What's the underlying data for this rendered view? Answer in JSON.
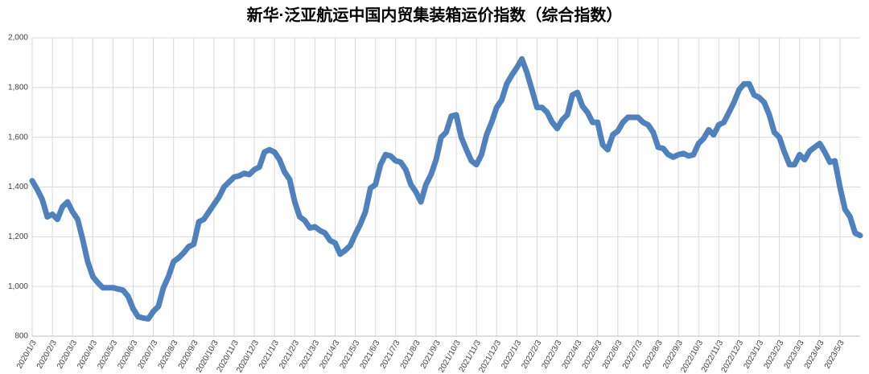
{
  "chart_data": {
    "type": "line",
    "title": "新华·泛亚航运中国内贸集装箱运价指数（综合指数）",
    "color": "#4f81bd",
    "grid": true,
    "ylim": [
      800,
      2000
    ],
    "yticks": [
      800,
      {
        "value": 1000,
        "label": "1,000"
      },
      {
        "value": 1200,
        "label": "1,200"
      },
      {
        "value": 1400,
        "label": "1,400"
      },
      {
        "value": 1600,
        "label": "1,600"
      },
      {
        "value": 1800,
        "label": "1,800"
      },
      {
        "value": 2000,
        "label": "2,000"
      }
    ],
    "categories": [
      "2020/1/3",
      null,
      null,
      null,
      "2020/2/3",
      null,
      null,
      null,
      "2020/3/3",
      null,
      null,
      null,
      "2020/4/3",
      null,
      null,
      null,
      "2020/5/3",
      null,
      null,
      null,
      "2020/6/3",
      null,
      null,
      null,
      "2020/7/3",
      null,
      null,
      null,
      "2020/8/3",
      null,
      null,
      null,
      "2020/9/3",
      null,
      null,
      null,
      "2020/10/3",
      null,
      null,
      null,
      "2020/11/3",
      null,
      null,
      null,
      "2020/12/3",
      null,
      null,
      null,
      "2021/1/3",
      null,
      null,
      null,
      "2021/2/3",
      null,
      null,
      null,
      "2021/3/3",
      null,
      null,
      null,
      "2021/4/3",
      null,
      null,
      null,
      "2021/5/3",
      null,
      null,
      null,
      "2021/6/3",
      null,
      null,
      null,
      "2021/7/3",
      null,
      null,
      null,
      "2021/8/3",
      null,
      null,
      null,
      "2021/9/3",
      null,
      null,
      null,
      "2021/10/3",
      null,
      null,
      null,
      "2021/11/3",
      null,
      null,
      null,
      "2021/12/3",
      null,
      null,
      null,
      "2022/1/3",
      null,
      null,
      null,
      "2022/2/3",
      null,
      null,
      null,
      "2022/3/3",
      null,
      null,
      null,
      "2022/4/3",
      null,
      null,
      null,
      "2022/5/3",
      null,
      null,
      null,
      "2022/6/3",
      null,
      null,
      null,
      "2022/7/3",
      null,
      null,
      null,
      "2022/8/3",
      null,
      null,
      null,
      "2022/9/3",
      null,
      null,
      null,
      "2022/10/3",
      null,
      null,
      null,
      "2022/11/3",
      null,
      null,
      null,
      "2022/12/3",
      null,
      null,
      null,
      "2023/1/3",
      null,
      null,
      null,
      "2023/2/3",
      null,
      null,
      null,
      "2023/3/3",
      null,
      null,
      null,
      "2023/4/3",
      null,
      null,
      null,
      "2023/5/3",
      null,
      null,
      null,
      null
    ],
    "values": [
      1425,
      1390,
      1350,
      1280,
      1290,
      1270,
      1320,
      1340,
      1300,
      1270,
      1190,
      1100,
      1040,
      1015,
      995,
      995,
      995,
      990,
      985,
      960,
      910,
      878,
      873,
      870,
      900,
      920,
      995,
      1040,
      1100,
      1115,
      1135,
      1160,
      1170,
      1260,
      1270,
      1300,
      1330,
      1360,
      1400,
      1420,
      1440,
      1445,
      1455,
      1450,
      1470,
      1480,
      1540,
      1550,
      1540,
      1510,
      1460,
      1430,
      1340,
      1280,
      1265,
      1235,
      1240,
      1225,
      1215,
      1185,
      1175,
      1130,
      1145,
      1165,
      1210,
      1250,
      1300,
      1395,
      1410,
      1490,
      1530,
      1525,
      1505,
      1500,
      1470,
      1410,
      1380,
      1340,
      1410,
      1450,
      1510,
      1600,
      1620,
      1685,
      1690,
      1600,
      1550,
      1505,
      1490,
      1530,
      1610,
      1660,
      1720,
      1750,
      1815,
      1850,
      1880,
      1915,
      1860,
      1790,
      1720,
      1720,
      1700,
      1660,
      1635,
      1670,
      1690,
      1770,
      1780,
      1725,
      1700,
      1660,
      1660,
      1570,
      1550,
      1610,
      1625,
      1660,
      1680,
      1680,
      1680,
      1660,
      1650,
      1620,
      1560,
      1555,
      1530,
      1520,
      1530,
      1535,
      1525,
      1530,
      1575,
      1595,
      1630,
      1610,
      1650,
      1660,
      1700,
      1740,
      1790,
      1815,
      1815,
      1770,
      1760,
      1740,
      1690,
      1620,
      1600,
      1540,
      1490,
      1490,
      1530,
      1510,
      1545,
      1560,
      1575,
      1540,
      1500,
      1505,
      1400,
      1310,
      1280,
      1215,
      1205
    ]
  }
}
